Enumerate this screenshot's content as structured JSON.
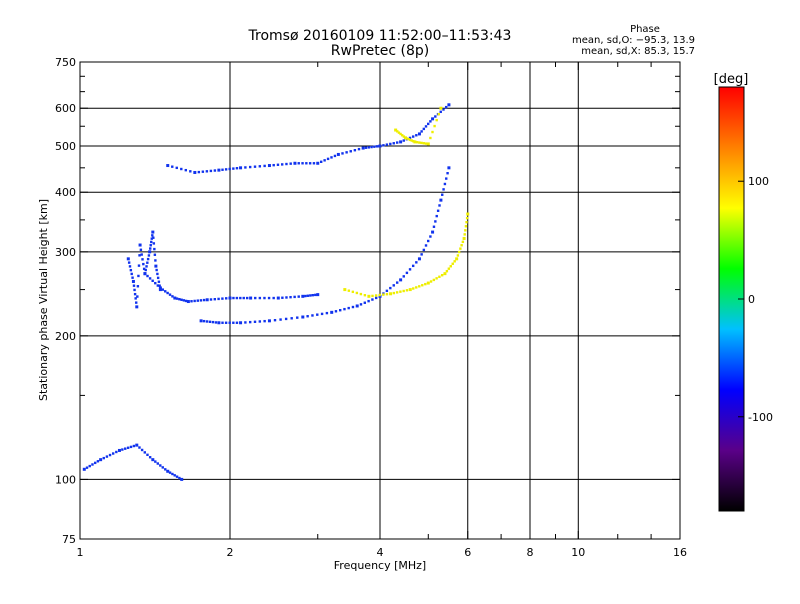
{
  "chart_data": {
    "type": "scatter",
    "title": "Tromsø 20160109 11:52:00–11:53:43",
    "subtitle": "RwPretec (8p)",
    "xlabel": "Frequency [MHz]",
    "ylabel": "Stationary phase Virtual Height [km]",
    "x_scale": "log",
    "y_scale": "log",
    "xlim": [
      1,
      16
    ],
    "ylim": [
      75,
      750
    ],
    "x_ticks": [
      1,
      2,
      4,
      6,
      8,
      10,
      16
    ],
    "x_minor_ticks": [
      3,
      5,
      7,
      9,
      12,
      14
    ],
    "y_ticks": [
      75,
      100,
      200,
      300,
      400,
      500,
      600,
      750
    ],
    "y_minor_ticks": [
      150,
      250,
      350,
      450,
      550,
      650,
      700
    ],
    "grid": true,
    "phase_stats": {
      "heading": "Phase",
      "line_o": "mean, sd,O: −95.3, 13.9",
      "line_x": "mean, sd,X: 85.3, 15.7"
    },
    "colorbar": {
      "label": "[deg]",
      "ticks": [
        100,
        0,
        -100
      ],
      "range": [
        -180,
        180
      ],
      "colors": [
        "#000000",
        "#5a0088",
        "#0000ff",
        "#00c0ff",
        "#00ff00",
        "#ffff00",
        "#ff8000",
        "#ff0000"
      ]
    },
    "series": [
      {
        "name": "O",
        "color": "#1133ee",
        "trace_f2_lower": {
          "x": [
            1.75,
            1.9,
            2.1,
            2.4,
            2.8,
            3.2,
            3.6,
            4.0,
            4.4,
            4.8,
            5.1,
            5.3,
            5.5
          ],
          "y": [
            215,
            213,
            213,
            215,
            219,
            224,
            231,
            242,
            262,
            290,
            330,
            385,
            450
          ]
        },
        "trace_f2_oblique": {
          "x": [
            1.35,
            1.45,
            1.55,
            1.65,
            1.8,
            2.0,
            2.2,
            2.5,
            2.8,
            3.0
          ],
          "y": [
            270,
            252,
            240,
            236,
            238,
            240,
            240,
            240,
            242,
            244
          ]
        },
        "trace_f_upper": {
          "x": [
            1.5,
            1.7,
            1.9,
            2.1,
            2.4,
            2.7,
            3.0,
            3.3,
            3.7,
            4.0,
            4.4,
            4.8,
            5.1,
            5.5
          ],
          "y": [
            455,
            440,
            445,
            450,
            455,
            460,
            460,
            480,
            495,
            500,
            510,
            530,
            570,
            610
          ]
        },
        "trace_e_region": {
          "x": [
            1.02,
            1.1,
            1.2,
            1.3,
            1.4,
            1.5,
            1.6
          ],
          "y": [
            105,
            110,
            115,
            118,
            110,
            104,
            100
          ]
        },
        "scatter_low_freq": {
          "x": [
            1.25,
            1.28,
            1.3,
            1.32,
            1.35,
            1.38,
            1.4,
            1.42,
            1.45
          ],
          "y": [
            290,
            260,
            230,
            310,
            270,
            300,
            330,
            280,
            250
          ]
        }
      },
      {
        "name": "X",
        "color": "#eeee00",
        "trace_f2_lower": {
          "x": [
            3.4,
            3.8,
            4.2,
            4.6,
            5.0,
            5.4,
            5.7,
            5.9,
            6.0
          ],
          "y": [
            250,
            242,
            245,
            250,
            258,
            270,
            290,
            320,
            360
          ]
        },
        "trace_f_upper": {
          "x": [
            4.3,
            4.5,
            4.7,
            5.0,
            5.3
          ],
          "y": [
            540,
            520,
            510,
            505,
            600
          ]
        }
      }
    ]
  }
}
